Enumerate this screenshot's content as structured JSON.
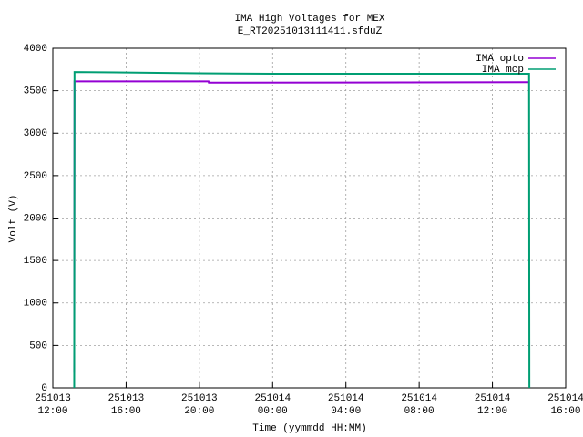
{
  "chart_data": {
    "type": "line",
    "title": "IMA High Voltages for MEX",
    "subtitle": "E_RT20251013111411.sfduZ",
    "x_label": "Time (yymmdd HH:MM)",
    "y_label": "Volt (V)",
    "grid": true,
    "legend": "top-right",
    "xlim": [
      "251013 12:00",
      "251014 16:00"
    ],
    "xticks": [
      {
        "value": "251013 12:00",
        "label": "251013\n12:00"
      },
      {
        "value": "251013 16:00",
        "label": "251013\n16:00"
      },
      {
        "value": "251013 20:00",
        "label": "251013\n20:00"
      },
      {
        "value": "251014 00:00",
        "label": "251014\n00:00"
      },
      {
        "value": "251014 04:00",
        "label": "251014\n04:00"
      },
      {
        "value": "251014 08:00",
        "label": "251014\n08:00"
      },
      {
        "value": "251014 12:00",
        "label": "251014\n12:00"
      },
      {
        "value": "251014 16:00",
        "label": "251014\n16:00"
      }
    ],
    "ylim": [
      0,
      4000
    ],
    "yticks": [
      0,
      500,
      1000,
      1500,
      2000,
      2500,
      3000,
      3500,
      4000
    ],
    "series": [
      {
        "name": "IMA opto",
        "color": "#9400d3",
        "x": [
          "251013 13:10",
          "251013 13:11",
          "251013 20:30",
          "251013 20:31",
          "251014 14:00"
        ],
        "values": [
          180,
          3610,
          3610,
          3595,
          3600
        ]
      },
      {
        "name": "IMA mcp",
        "color": "#009e73",
        "x": [
          "251013 13:10",
          "251013 13:11",
          "251013 16:00",
          "251013 20:00",
          "251014 00:00",
          "251014 04:00",
          "251014 08:00",
          "251014 12:00",
          "251014 14:00",
          "251014 14:01"
        ],
        "values": [
          0,
          3720,
          3715,
          3705,
          3700,
          3700,
          3700,
          3700,
          3700,
          0
        ]
      }
    ]
  }
}
